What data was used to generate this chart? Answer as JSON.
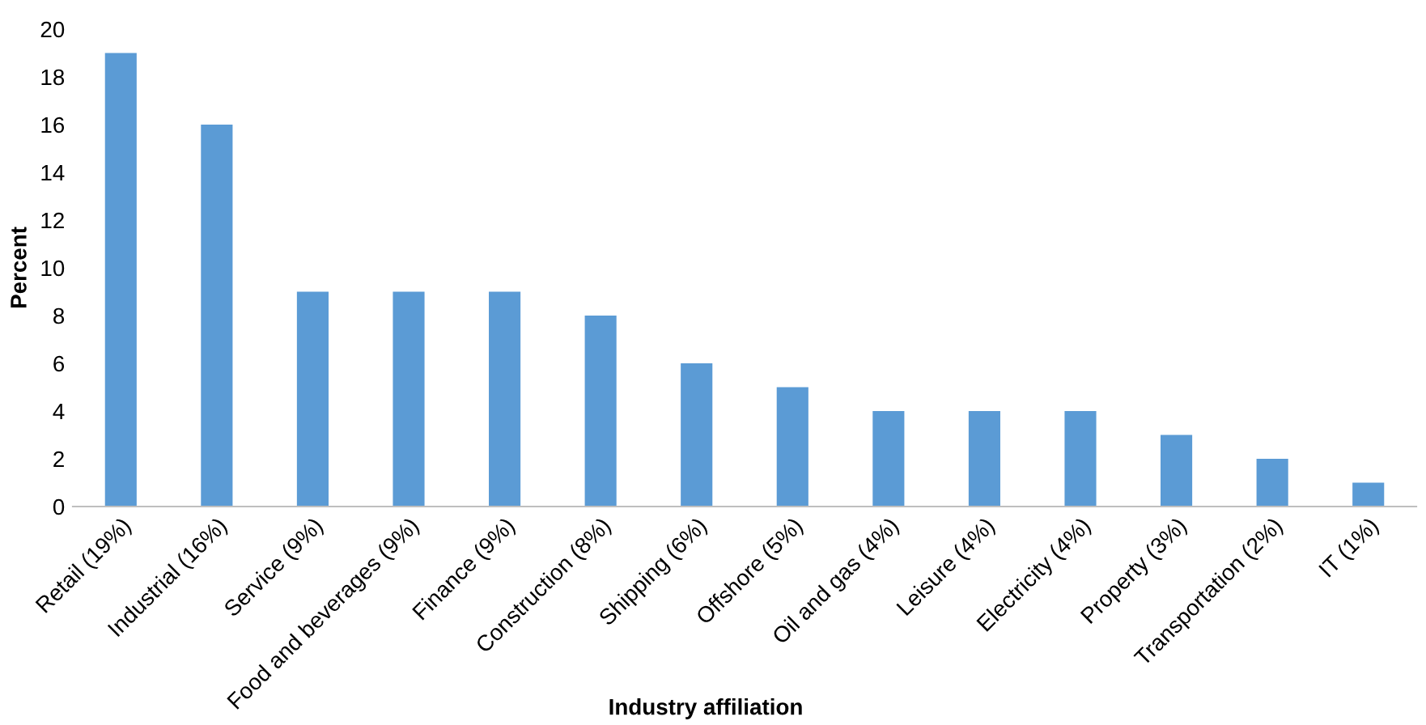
{
  "chart_data": {
    "type": "bar",
    "xlabel": "Industry affiliation",
    "ylabel": "Percent",
    "categories": [
      "Retail (19%)",
      "Industrial (16%)",
      "Service (9%)",
      "Food and beverages (9%)",
      "Finance (9%)",
      "Construction (8%)",
      "Shipping (6%)",
      "Offshore (5%)",
      "Oil and gas (4%)",
      "Leisure (4%)",
      "Electricity (4%)",
      "Property (3%)",
      "Transportation (2%)",
      "IT (1%)"
    ],
    "values": [
      19,
      16,
      9,
      9,
      9,
      8,
      6,
      5,
      4,
      4,
      4,
      3,
      2,
      1
    ],
    "color": "#5b9bd5",
    "ylim": [
      0,
      20
    ],
    "yticks": [
      0,
      2,
      4,
      6,
      8,
      10,
      12,
      14,
      16,
      18,
      20
    ],
    "grid": false,
    "legend": false
  }
}
